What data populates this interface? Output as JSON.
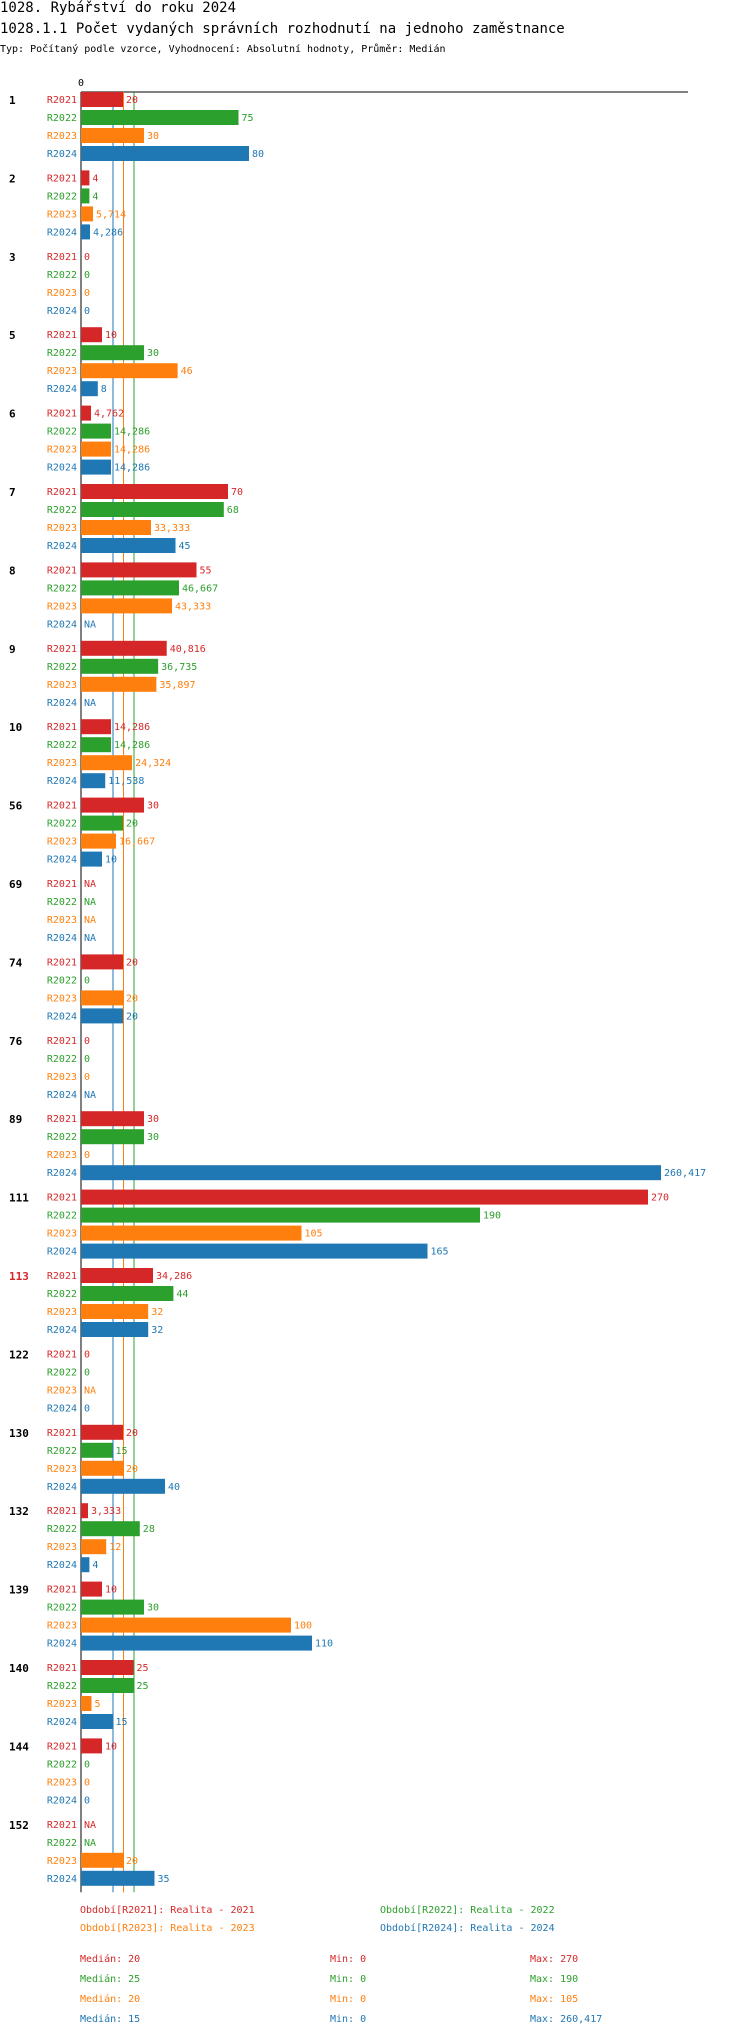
{
  "title": "1028. Rybářství do roku 2024",
  "subtitle": "1028.1.1 Počet vydaných správních rozhodnutí na jednoho zaměstnance",
  "type_line": "Typ: Počítaný podle vzorce, Vyhodnocení: Absolutní hodnoty, Průměr: Medián",
  "colors": {
    "R2021": "#d62728",
    "R2022": "#2ca02c",
    "R2023": "#ff7f0e",
    "R2024": "#1f77b4",
    "highlight": "#d62728"
  },
  "chart_data": {
    "type": "bar",
    "orientation": "horizontal",
    "axis_zero_label": "0",
    "scale": "nonlinear (values above ~270 compressed)",
    "highlighted_group": "113",
    "series_names": [
      "R2021",
      "R2022",
      "R2023",
      "R2024"
    ],
    "groups": [
      {
        "label": "1",
        "values": [
          20,
          75,
          30,
          80
        ],
        "labels": [
          "20",
          "75",
          "30",
          "80"
        ]
      },
      {
        "label": "2",
        "values": [
          4,
          4,
          5.714,
          4.286
        ],
        "labels": [
          "4",
          "4",
          "5,714",
          "4,286"
        ]
      },
      {
        "label": "3",
        "values": [
          0,
          0,
          0,
          0
        ],
        "labels": [
          "0",
          "0",
          "0",
          "0"
        ]
      },
      {
        "label": "5",
        "values": [
          10,
          30,
          46,
          8
        ],
        "labels": [
          "10",
          "30",
          "46",
          "8"
        ]
      },
      {
        "label": "6",
        "values": [
          4.762,
          14.286,
          14.286,
          14.286
        ],
        "labels": [
          "4,762",
          "14,286",
          "14,286",
          "14,286"
        ]
      },
      {
        "label": "7",
        "values": [
          70,
          68,
          33.333,
          45
        ],
        "labels": [
          "70",
          "68",
          "33,333",
          "45"
        ]
      },
      {
        "label": "8",
        "values": [
          55,
          46.667,
          43.333,
          null
        ],
        "labels": [
          "55",
          "46,667",
          "43,333",
          "NA"
        ]
      },
      {
        "label": "9",
        "values": [
          40.816,
          36.735,
          35.897,
          null
        ],
        "labels": [
          "40,816",
          "36,735",
          "35,897",
          "NA"
        ]
      },
      {
        "label": "10",
        "values": [
          14.286,
          14.286,
          24.324,
          11.538
        ],
        "labels": [
          "14,286",
          "14,286",
          "24,324",
          "11,538"
        ]
      },
      {
        "label": "56",
        "values": [
          30,
          20,
          16.667,
          10
        ],
        "labels": [
          "30",
          "20",
          "16,667",
          "10"
        ]
      },
      {
        "label": "69",
        "values": [
          null,
          null,
          null,
          null
        ],
        "labels": [
          "NA",
          "NA",
          "NA",
          "NA"
        ]
      },
      {
        "label": "74",
        "values": [
          20,
          0,
          20,
          20
        ],
        "labels": [
          "20",
          "0",
          "20",
          "20"
        ]
      },
      {
        "label": "76",
        "values": [
          0,
          0,
          0,
          null
        ],
        "labels": [
          "0",
          "0",
          "0",
          "NA"
        ]
      },
      {
        "label": "89",
        "values": [
          30,
          30,
          0,
          260.417
        ],
        "labels": [
          "30",
          "30",
          "0",
          "260,417"
        ]
      },
      {
        "label": "111",
        "values": [
          270,
          190,
          105,
          165
        ],
        "labels": [
          "270",
          "190",
          "105",
          "165"
        ]
      },
      {
        "label": "113",
        "values": [
          34.286,
          44,
          32,
          32
        ],
        "labels": [
          "34,286",
          "44",
          "32",
          "32"
        ]
      },
      {
        "label": "122",
        "values": [
          0,
          0,
          null,
          0
        ],
        "labels": [
          "0",
          "0",
          "NA",
          "0"
        ]
      },
      {
        "label": "130",
        "values": [
          20,
          15,
          20,
          40
        ],
        "labels": [
          "20",
          "15",
          "20",
          "40"
        ]
      },
      {
        "label": "132",
        "values": [
          3.333,
          28,
          12,
          4
        ],
        "labels": [
          "3,333",
          "28",
          "12",
          "4"
        ]
      },
      {
        "label": "139",
        "values": [
          10,
          30,
          100,
          110
        ],
        "labels": [
          "10",
          "30",
          "100",
          "110"
        ]
      },
      {
        "label": "140",
        "values": [
          25,
          25,
          5,
          15
        ],
        "labels": [
          "25",
          "25",
          "5",
          "15"
        ]
      },
      {
        "label": "144",
        "values": [
          10,
          0,
          0,
          0
        ],
        "labels": [
          "10",
          "0",
          "0",
          "0"
        ]
      },
      {
        "label": "152",
        "values": [
          null,
          null,
          20,
          35
        ],
        "labels": [
          "NA",
          "NA",
          "20",
          "35"
        ]
      }
    ],
    "median_lines": [
      20,
      25,
      20,
      15
    ],
    "legend": [
      "Období[R2021]: Realita - 2021",
      "Období[R2022]: Realita - 2022",
      "Období[R2023]: Realita - 2023",
      "Období[R2024]: Realita - 2024"
    ],
    "stats": [
      {
        "median": "Medián: 20",
        "min": "Min: 0",
        "max": "Max: 270"
      },
      {
        "median": "Medián: 25",
        "min": "Min: 0",
        "max": "Max: 190"
      },
      {
        "median": "Medián: 20",
        "min": "Min: 0",
        "max": "Max: 105"
      },
      {
        "median": "Medián: 15",
        "min": "Min: 0",
        "max": "Max: 260,417"
      }
    ]
  }
}
